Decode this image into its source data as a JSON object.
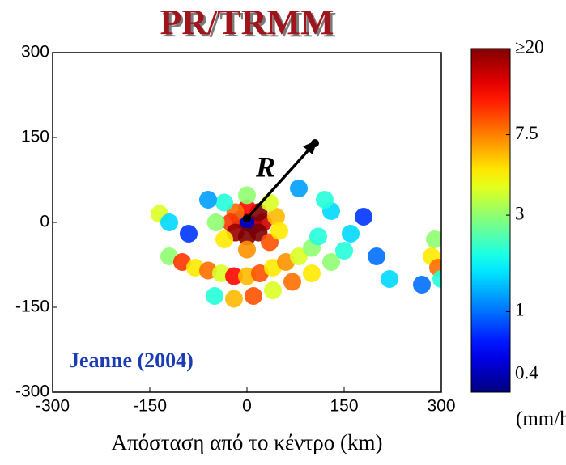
{
  "chart_data": {
    "type": "heatmap",
    "title": "PR/TRMM",
    "x_label": "Απόσταση από το κέντρο (km)",
    "annotations": [
      "R",
      "Jeanne (2004)"
    ],
    "xlim": [
      -300,
      300
    ],
    "xticks": [
      -300,
      -150,
      0,
      150,
      300
    ],
    "ylim": [
      -300,
      300
    ],
    "yticks": [
      -300,
      -150,
      0,
      150,
      300
    ],
    "cells": {
      "x": [
        0,
        -10,
        10,
        25,
        18,
        0,
        -18,
        -25,
        -18,
        0,
        18,
        45,
        35,
        0,
        -35,
        -48,
        -35,
        0,
        35,
        50,
        -120,
        -100,
        -80,
        -60,
        -40,
        -20,
        0,
        20,
        40,
        60,
        80,
        100,
        110,
        -50,
        -20,
        10,
        40,
        70,
        100,
        130,
        150,
        160,
        130,
        120,
        80,
        -135,
        -120,
        -90,
        -60,
        290,
        285,
        295,
        300,
        270,
        200,
        220,
        180
      ],
      "y": [
        0,
        5,
        -5,
        0,
        18,
        25,
        18,
        0,
        -18,
        -25,
        -18,
        10,
        35,
        48,
        35,
        0,
        -30,
        -48,
        -35,
        -15,
        -60,
        -70,
        -80,
        -85,
        -90,
        -95,
        -95,
        -90,
        -80,
        -70,
        -60,
        -45,
        -25,
        -130,
        -135,
        -130,
        -120,
        -105,
        -90,
        -70,
        -50,
        -20,
        20,
        40,
        60,
        15,
        0,
        -20,
        40,
        -30,
        -60,
        -80,
        -100,
        -110,
        -60,
        -100,
        10
      ],
      "values": [
        0.4,
        0.5,
        0.5,
        15,
        20,
        12,
        8,
        10,
        18,
        20,
        20,
        6,
        4,
        3,
        2,
        3,
        5,
        7,
        9,
        5,
        3,
        10,
        5,
        8,
        4,
        12,
        6,
        9,
        5,
        7,
        4,
        3,
        2,
        2,
        6,
        9,
        4,
        8,
        5,
        3,
        2,
        1.5,
        1.5,
        2,
        1.2,
        4,
        1.5,
        0.8,
        1.2,
        3,
        5,
        8,
        2,
        1,
        1,
        1.5,
        0.8
      ]
    },
    "colorbar": {
      "label": "(mm/h)",
      "log": true,
      "colormap": "jet",
      "clim": [
        0.4,
        20
      ],
      "ticks": [
        {
          "value": 20,
          "label": "≥20"
        },
        7.5,
        3,
        1,
        0.4
      ]
    }
  }
}
